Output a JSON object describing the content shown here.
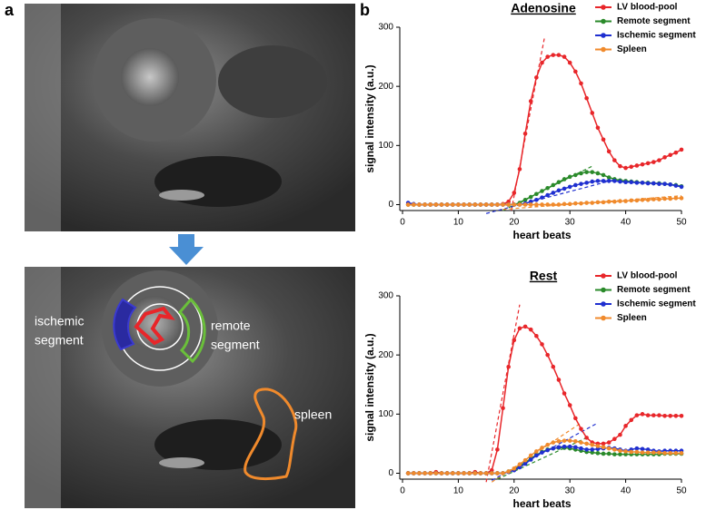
{
  "panel_labels": [
    "a",
    "b"
  ],
  "image_labels": [
    "ischemic",
    "segment",
    "remote",
    "segment",
    "spleen"
  ],
  "chart_data": [
    {
      "type": "line",
      "title": "Adenosine",
      "x_label": "heart beats",
      "y_label": "signal intensity (a.u.)",
      "xlim": [
        0,
        50
      ],
      "ylim": [
        -10,
        300
      ],
      "xticks": [
        0,
        10,
        20,
        30,
        40,
        50
      ],
      "yticks": [
        0,
        100,
        200,
        300
      ],
      "legend": "upper right",
      "x": [
        1,
        2,
        3,
        4,
        5,
        6,
        7,
        8,
        9,
        10,
        11,
        12,
        13,
        14,
        15,
        16,
        17,
        18,
        19,
        20,
        21,
        22,
        23,
        24,
        25,
        26,
        27,
        28,
        29,
        30,
        31,
        32,
        33,
        34,
        35,
        36,
        37,
        38,
        39,
        40,
        41,
        42,
        43,
        44,
        45,
        46,
        47,
        48,
        49,
        50
      ],
      "series": [
        {
          "name": "LV blood-pool",
          "color": "#e8262a",
          "values": [
            0,
            0,
            0,
            0,
            0,
            0,
            0,
            0,
            0,
            0,
            0,
            0,
            0,
            0,
            0,
            0,
            0,
            1,
            5,
            20,
            60,
            120,
            175,
            215,
            240,
            250,
            253,
            253,
            250,
            240,
            225,
            205,
            180,
            155,
            130,
            110,
            90,
            75,
            65,
            62,
            64,
            66,
            68,
            70,
            72,
            75,
            80,
            84,
            88,
            93
          ]
        },
        {
          "name": "Remote segment",
          "color": "#2a8a2a",
          "values": [
            0,
            0,
            0,
            0,
            0,
            0,
            0,
            0,
            0,
            0,
            0,
            0,
            0,
            0,
            0,
            0,
            0,
            0,
            0,
            0,
            3,
            8,
            13,
            18,
            23,
            28,
            33,
            38,
            43,
            47,
            50,
            53,
            55,
            55,
            53,
            50,
            46,
            43,
            41,
            40,
            39,
            38,
            37,
            37,
            36,
            36,
            35,
            34,
            33,
            31
          ]
        },
        {
          "name": "Ischemic segment",
          "color": "#1f2fd0",
          "values": [
            3,
            1,
            0,
            0,
            0,
            0,
            0,
            0,
            0,
            0,
            0,
            0,
            0,
            0,
            0,
            0,
            0,
            0,
            0,
            0,
            0,
            2,
            5,
            8,
            12,
            16,
            20,
            24,
            27,
            30,
            33,
            35,
            37,
            39,
            40,
            40,
            40,
            40,
            39,
            38,
            38,
            37,
            37,
            36,
            36,
            35,
            35,
            34,
            32,
            30
          ]
        },
        {
          "name": "Spleen",
          "color": "#f08a2c",
          "values": [
            0,
            0,
            0,
            0,
            0,
            0,
            0,
            0,
            0,
            0,
            0,
            0,
            0,
            0,
            0,
            0,
            0,
            0,
            0,
            0,
            0,
            0,
            0,
            0,
            0,
            0,
            0,
            0,
            1,
            1,
            2,
            2,
            3,
            3,
            4,
            4,
            5,
            5,
            6,
            6,
            7,
            7,
            8,
            8,
            9,
            9,
            10,
            10,
            11,
            11
          ]
        }
      ],
      "fits": [
        {
          "color": "#e8262a",
          "x": [
            19.5,
            25.5
          ],
          "values": [
            -10,
            285
          ]
        },
        {
          "color": "#2a8a2a",
          "x": [
            18,
            34
          ],
          "values": [
            -10,
            65
          ]
        },
        {
          "color": "#1f2fd0",
          "x": [
            15,
            38
          ],
          "values": [
            -15,
            42
          ]
        },
        {
          "color": "#f08a2c",
          "x": [
            18,
            50
          ],
          "values": [
            -8,
            15
          ]
        }
      ]
    },
    {
      "type": "line",
      "title": "Rest",
      "x_label": "heart beats",
      "y_label": "signal intensity (a.u.)",
      "xlim": [
        0,
        50
      ],
      "ylim": [
        -10,
        300
      ],
      "xticks": [
        0,
        10,
        20,
        30,
        40,
        50
      ],
      "yticks": [
        0,
        100,
        200,
        300
      ],
      "legend": "upper right",
      "x": [
        1,
        2,
        3,
        4,
        5,
        6,
        7,
        8,
        9,
        10,
        11,
        12,
        13,
        14,
        15,
        16,
        17,
        18,
        19,
        20,
        21,
        22,
        23,
        24,
        25,
        26,
        27,
        28,
        29,
        30,
        31,
        32,
        33,
        34,
        35,
        36,
        37,
        38,
        39,
        40,
        41,
        42,
        43,
        44,
        45,
        46,
        47,
        48,
        49,
        50
      ],
      "series": [
        {
          "name": "LV blood-pool",
          "color": "#e8262a",
          "values": [
            0,
            0,
            0,
            0,
            0,
            2,
            0,
            0,
            0,
            0,
            0,
            0,
            2,
            0,
            0,
            5,
            40,
            110,
            180,
            225,
            245,
            248,
            243,
            232,
            218,
            200,
            180,
            158,
            135,
            115,
            93,
            75,
            60,
            52,
            50,
            50,
            52,
            58,
            65,
            80,
            90,
            98,
            100,
            98,
            98,
            98,
            97,
            97,
            97,
            97
          ]
        },
        {
          "name": "Remote segment",
          "color": "#2a8a2a",
          "values": [
            0,
            0,
            0,
            0,
            0,
            0,
            0,
            0,
            0,
            0,
            0,
            0,
            0,
            0,
            0,
            0,
            0,
            0,
            3,
            7,
            12,
            18,
            25,
            31,
            36,
            40,
            42,
            43,
            43,
            42,
            40,
            38,
            36,
            35,
            34,
            33,
            33,
            32,
            32,
            32,
            32,
            32,
            32,
            32,
            32,
            32,
            33,
            33,
            33,
            33
          ]
        },
        {
          "name": "Ischemic segment",
          "color": "#1f2fd0",
          "values": [
            0,
            0,
            0,
            0,
            0,
            0,
            0,
            0,
            0,
            0,
            0,
            0,
            0,
            0,
            0,
            0,
            0,
            0,
            2,
            5,
            10,
            16,
            23,
            30,
            35,
            39,
            42,
            44,
            45,
            45,
            44,
            42,
            40,
            40,
            41,
            42,
            43,
            42,
            40,
            38,
            40,
            42,
            41,
            40,
            38,
            37,
            38,
            38,
            38,
            38
          ]
        },
        {
          "name": "Spleen",
          "color": "#f08a2c",
          "values": [
            0,
            0,
            0,
            0,
            0,
            0,
            0,
            0,
            0,
            0,
            0,
            0,
            0,
            0,
            0,
            0,
            0,
            0,
            3,
            8,
            15,
            22,
            30,
            37,
            43,
            48,
            52,
            54,
            55,
            55,
            54,
            52,
            50,
            48,
            46,
            44,
            42,
            40,
            38,
            37,
            36,
            36,
            35,
            35,
            35,
            35,
            34,
            34,
            34,
            34
          ]
        }
      ],
      "fits": [
        {
          "color": "#e8262a",
          "x": [
            15,
            21
          ],
          "values": [
            -15,
            285
          ]
        },
        {
          "color": "#f08a2c",
          "x": [
            16,
            32
          ],
          "values": [
            -15,
            85
          ]
        },
        {
          "color": "#1f2fd0",
          "x": [
            16,
            35
          ],
          "values": [
            -12,
            85
          ]
        },
        {
          "color": "#2a8a2a",
          "x": [
            17,
            33
          ],
          "values": [
            -10,
            60
          ]
        }
      ]
    }
  ]
}
